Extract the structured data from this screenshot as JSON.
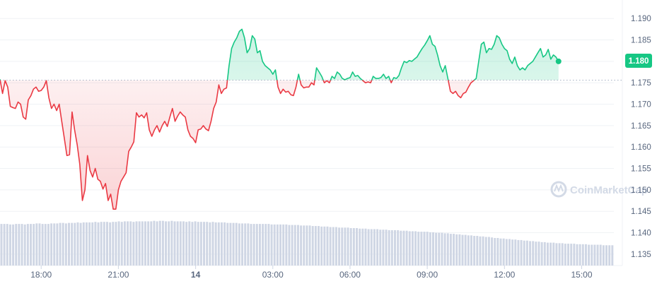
{
  "watermark": "CoinMarketCap",
  "price_tag": "1.180",
  "colors": {
    "up": "#16c784",
    "down": "#ea3943",
    "grid": "#eff2f5",
    "axis_text": "#58667e",
    "volume": "#cfd6e4",
    "baseline": "#a6b0c3",
    "watermark": "#cfd6e4"
  },
  "chart_data": {
    "type": "line",
    "title": "",
    "xlabel": "",
    "ylabel": "",
    "ylim": [
      1.133,
      1.193
    ],
    "y_ticks": [
      "1.190",
      "1.185",
      "1.180",
      "1.175",
      "1.170",
      "1.165",
      "1.160",
      "1.155",
      "1.150",
      "1.145",
      "1.140",
      "1.135"
    ],
    "x_range_hours": [
      -7.6,
      16.25
    ],
    "x_ticks": [
      {
        "label": "18:00",
        "hour": -6
      },
      {
        "label": "21:00",
        "hour": -3
      },
      {
        "label": "14",
        "hour": 0
      },
      {
        "label": "03:00",
        "hour": 3
      },
      {
        "label": "06:00",
        "hour": 6
      },
      {
        "label": "09:00",
        "hour": 9
      },
      {
        "label": "12:00",
        "hour": 12
      },
      {
        "label": "15:00",
        "hour": 15
      }
    ],
    "baseline_price": 1.1756,
    "grid": true,
    "series": [
      {
        "values": [
          [
            -7.6,
            1.1758
          ],
          [
            -7.5,
            1.1725
          ],
          [
            -7.4,
            1.1755
          ],
          [
            -7.3,
            1.174
          ],
          [
            -7.2,
            1.1695
          ],
          [
            -7.1,
            1.1692
          ],
          [
            -7.0,
            1.169
          ],
          [
            -6.9,
            1.1705
          ],
          [
            -6.8,
            1.17
          ],
          [
            -6.7,
            1.167
          ],
          [
            -6.6,
            1.1665
          ],
          [
            -6.5,
            1.171
          ],
          [
            -6.4,
            1.172
          ],
          [
            -6.3,
            1.1735
          ],
          [
            -6.2,
            1.174
          ],
          [
            -6.1,
            1.173
          ],
          [
            -6.0,
            1.1732
          ],
          [
            -5.9,
            1.174
          ],
          [
            -5.8,
            1.1755
          ],
          [
            -5.7,
            1.1715
          ],
          [
            -5.6,
            1.169
          ],
          [
            -5.5,
            1.17
          ],
          [
            -5.4,
            1.1685
          ],
          [
            -5.3,
            1.17
          ],
          [
            -5.2,
            1.166
          ],
          [
            -5.1,
            1.162
          ],
          [
            -5.0,
            1.158
          ],
          [
            -4.9,
            1.1582
          ],
          [
            -4.8,
            1.1682
          ],
          [
            -4.7,
            1.164
          ],
          [
            -4.6,
            1.1605
          ],
          [
            -4.5,
            1.156
          ],
          [
            -4.4,
            1.1475
          ],
          [
            -4.3,
            1.15
          ],
          [
            -4.2,
            1.158
          ],
          [
            -4.1,
            1.1545
          ],
          [
            -4.0,
            1.153
          ],
          [
            -3.9,
            1.155
          ],
          [
            -3.8,
            1.1525
          ],
          [
            -3.7,
            1.152
          ],
          [
            -3.6,
            1.1502
          ],
          [
            -3.5,
            1.1515
          ],
          [
            -3.4,
            1.1475
          ],
          [
            -3.3,
            1.149
          ],
          [
            -3.2,
            1.1455
          ],
          [
            -3.1,
            1.1455
          ],
          [
            -3.0,
            1.15
          ],
          [
            -2.9,
            1.152
          ],
          [
            -2.8,
            1.153
          ],
          [
            -2.7,
            1.154
          ],
          [
            -2.6,
            1.159
          ],
          [
            -2.5,
            1.16
          ],
          [
            -2.4,
            1.1612
          ],
          [
            -2.3,
            1.168
          ],
          [
            -2.2,
            1.167
          ],
          [
            -2.1,
            1.1675
          ],
          [
            -2.0,
            1.1668
          ],
          [
            -1.9,
            1.168
          ],
          [
            -1.8,
            1.164
          ],
          [
            -1.7,
            1.1625
          ],
          [
            -1.6,
            1.164
          ],
          [
            -1.5,
            1.165
          ],
          [
            -1.4,
            1.1635
          ],
          [
            -1.3,
            1.165
          ],
          [
            -1.2,
            1.166
          ],
          [
            -1.1,
            1.1648
          ],
          [
            -1.0,
            1.167
          ],
          [
            -0.9,
            1.169
          ],
          [
            -0.8,
            1.166
          ],
          [
            -0.7,
            1.1672
          ],
          [
            -0.6,
            1.1682
          ],
          [
            -0.5,
            1.1675
          ],
          [
            -0.4,
            1.167
          ],
          [
            -0.3,
            1.164
          ],
          [
            -0.2,
            1.1625
          ],
          [
            -0.1,
            1.162
          ],
          [
            0.0,
            1.161
          ],
          [
            0.1,
            1.164
          ],
          [
            0.2,
            1.1642
          ],
          [
            0.3,
            1.165
          ],
          [
            0.4,
            1.1642
          ],
          [
            0.5,
            1.1638
          ],
          [
            0.6,
            1.166
          ],
          [
            0.7,
            1.169
          ],
          [
            0.8,
            1.1705
          ],
          [
            0.9,
            1.1745
          ],
          [
            1.0,
            1.1725
          ],
          [
            1.1,
            1.1735
          ],
          [
            1.2,
            1.1738
          ],
          [
            1.3,
            1.179
          ],
          [
            1.4,
            1.183
          ],
          [
            1.5,
            1.1845
          ],
          [
            1.6,
            1.1855
          ],
          [
            1.7,
            1.187
          ],
          [
            1.8,
            1.1875
          ],
          [
            1.9,
            1.1855
          ],
          [
            2.0,
            1.182
          ],
          [
            2.1,
            1.183
          ],
          [
            2.2,
            1.186
          ],
          [
            2.3,
            1.1852
          ],
          [
            2.4,
            1.182
          ],
          [
            2.5,
            1.1825
          ],
          [
            2.6,
            1.18
          ],
          [
            2.7,
            1.179
          ],
          [
            2.8,
            1.1785
          ],
          [
            2.9,
            1.178
          ],
          [
            3.0,
            1.177
          ],
          [
            3.1,
            1.178
          ],
          [
            3.2,
            1.174
          ],
          [
            3.3,
            1.1725
          ],
          [
            3.4,
            1.1735
          ],
          [
            3.5,
            1.1728
          ],
          [
            3.6,
            1.173
          ],
          [
            3.7,
            1.1722
          ],
          [
            3.8,
            1.172
          ],
          [
            3.9,
            1.174
          ],
          [
            4.0,
            1.177
          ],
          [
            4.1,
            1.1745
          ],
          [
            4.2,
            1.1738
          ],
          [
            4.3,
            1.174
          ],
          [
            4.4,
            1.174
          ],
          [
            4.5,
            1.175
          ],
          [
            4.6,
            1.1745
          ],
          [
            4.7,
            1.1785
          ],
          [
            4.8,
            1.1775
          ],
          [
            4.9,
            1.1765
          ],
          [
            5.0,
            1.175
          ],
          [
            5.1,
            1.1755
          ],
          [
            5.2,
            1.175
          ],
          [
            5.3,
            1.1765
          ],
          [
            5.4,
            1.176
          ],
          [
            5.5,
            1.1775
          ],
          [
            5.6,
            1.177
          ],
          [
            5.7,
            1.176
          ],
          [
            5.8,
            1.1757
          ],
          [
            5.9,
            1.176
          ],
          [
            6.0,
            1.1762
          ],
          [
            6.1,
            1.1775
          ],
          [
            6.2,
            1.1765
          ],
          [
            6.3,
            1.1767
          ],
          [
            6.4,
            1.176
          ],
          [
            6.5,
            1.1755
          ],
          [
            6.6,
            1.175
          ],
          [
            6.7,
            1.1752
          ],
          [
            6.8,
            1.175
          ],
          [
            6.9,
            1.1765
          ],
          [
            7.0,
            1.176
          ],
          [
            7.1,
            1.176
          ],
          [
            7.2,
            1.1762
          ],
          [
            7.3,
            1.177
          ],
          [
            7.4,
            1.176
          ],
          [
            7.5,
            1.1765
          ],
          [
            7.6,
            1.175
          ],
          [
            7.7,
            1.1762
          ],
          [
            7.8,
            1.176
          ],
          [
            7.9,
            1.1767
          ],
          [
            8.0,
            1.1785
          ],
          [
            8.1,
            1.18
          ],
          [
            8.2,
            1.1797
          ],
          [
            8.3,
            1.1802
          ],
          [
            8.4,
            1.18
          ],
          [
            8.5,
            1.1805
          ],
          [
            8.6,
            1.181
          ],
          [
            8.7,
            1.182
          ],
          [
            8.8,
            1.183
          ],
          [
            8.9,
            1.1838
          ],
          [
            9.0,
            1.1848
          ],
          [
            9.1,
            1.186
          ],
          [
            9.2,
            1.184
          ],
          [
            9.3,
            1.1835
          ],
          [
            9.4,
            1.1815
          ],
          [
            9.5,
            1.179
          ],
          [
            9.6,
            1.1775
          ],
          [
            9.7,
            1.179
          ],
          [
            9.8,
            1.176
          ],
          [
            9.9,
            1.173
          ],
          [
            10.0,
            1.1725
          ],
          [
            10.1,
            1.173
          ],
          [
            10.2,
            1.172
          ],
          [
            10.3,
            1.1715
          ],
          [
            10.4,
            1.1725
          ],
          [
            10.5,
            1.1728
          ],
          [
            10.6,
            1.174
          ],
          [
            10.7,
            1.175
          ],
          [
            10.8,
            1.1755
          ],
          [
            10.9,
            1.176
          ],
          [
            11.0,
            1.18
          ],
          [
            11.1,
            1.184
          ],
          [
            11.2,
            1.1845
          ],
          [
            11.3,
            1.182
          ],
          [
            11.4,
            1.183
          ],
          [
            11.5,
            1.1828
          ],
          [
            11.6,
            1.184
          ],
          [
            11.7,
            1.186
          ],
          [
            11.8,
            1.1855
          ],
          [
            11.9,
            1.184
          ],
          [
            12.0,
            1.183
          ],
          [
            12.1,
            1.1825
          ],
          [
            12.2,
            1.1805
          ],
          [
            12.3,
            1.1795
          ],
          [
            12.4,
            1.181
          ],
          [
            12.5,
            1.179
          ],
          [
            12.6,
            1.178
          ],
          [
            12.7,
            1.1785
          ],
          [
            12.8,
            1.178
          ],
          [
            12.9,
            1.179
          ],
          [
            13.0,
            1.1795
          ],
          [
            13.1,
            1.18
          ],
          [
            13.2,
            1.181
          ],
          [
            13.3,
            1.182
          ],
          [
            13.4,
            1.183
          ],
          [
            13.5,
            1.181
          ],
          [
            13.6,
            1.1815
          ],
          [
            13.7,
            1.1828
          ],
          [
            13.8,
            1.1805
          ],
          [
            13.9,
            1.1815
          ],
          [
            14.0,
            1.181
          ],
          [
            14.1,
            1.18
          ]
        ]
      }
    ],
    "volume": {
      "scale_note": "relative",
      "values": [
        0.8,
        0.8,
        0.8,
        0.79,
        0.79,
        0.8,
        0.8,
        0.8,
        0.79,
        0.8,
        0.8,
        0.8,
        0.81,
        0.81,
        0.8,
        0.8,
        0.8,
        0.81,
        0.81,
        0.81,
        0.82,
        0.82,
        0.81,
        0.82,
        0.82,
        0.82,
        0.83,
        0.82,
        0.83,
        0.83,
        0.83,
        0.83,
        0.84,
        0.83,
        0.84,
        0.84,
        0.84,
        0.83,
        0.84,
        0.84,
        0.85,
        0.84,
        0.85,
        0.85,
        0.85,
        0.84,
        0.85,
        0.85,
        0.85,
        0.85,
        0.85,
        0.85,
        0.86,
        0.85,
        0.86,
        0.86,
        0.85,
        0.85,
        0.86,
        0.85,
        0.85,
        0.85,
        0.85,
        0.84,
        0.85,
        0.84,
        0.85,
        0.84,
        0.84,
        0.84,
        0.84,
        0.83,
        0.84,
        0.83,
        0.83,
        0.83,
        0.83,
        0.82,
        0.82,
        0.82,
        0.82,
        0.81,
        0.81,
        0.81,
        0.81,
        0.8,
        0.8,
        0.8,
        0.8,
        0.8,
        0.8,
        0.8,
        0.79,
        0.79,
        0.79,
        0.79,
        0.79,
        0.79,
        0.78,
        0.78,
        0.78,
        0.78,
        0.77,
        0.77,
        0.77,
        0.77,
        0.76,
        0.76,
        0.76,
        0.75,
        0.75,
        0.75,
        0.74,
        0.74,
        0.74,
        0.73,
        0.73,
        0.73,
        0.73,
        0.72,
        0.72,
        0.72,
        0.71,
        0.71,
        0.71,
        0.7,
        0.7,
        0.7,
        0.7,
        0.69,
        0.69,
        0.69,
        0.68,
        0.68,
        0.68,
        0.68,
        0.67,
        0.67,
        0.67,
        0.66,
        0.66,
        0.66,
        0.65,
        0.65,
        0.65,
        0.65,
        0.64,
        0.64,
        0.63,
        0.63,
        0.63,
        0.62,
        0.62,
        0.61,
        0.61,
        0.6,
        0.6,
        0.59,
        0.59,
        0.58,
        0.58,
        0.57,
        0.57,
        0.56,
        0.56,
        0.55,
        0.55,
        0.54,
        0.53,
        0.53,
        0.52,
        0.52,
        0.51,
        0.51,
        0.5,
        0.5,
        0.49,
        0.49,
        0.48,
        0.48,
        0.47,
        0.47,
        0.46,
        0.46,
        0.45,
        0.45,
        0.44,
        0.44,
        0.44,
        0.43,
        0.43,
        0.43,
        0.42,
        0.42,
        0.42,
        0.42,
        0.41,
        0.41,
        0.41,
        0.41,
        0.4,
        0.4,
        0.4,
        0.4,
        0.4,
        0.39,
        0.39,
        0.39,
        0.39
      ]
    }
  }
}
